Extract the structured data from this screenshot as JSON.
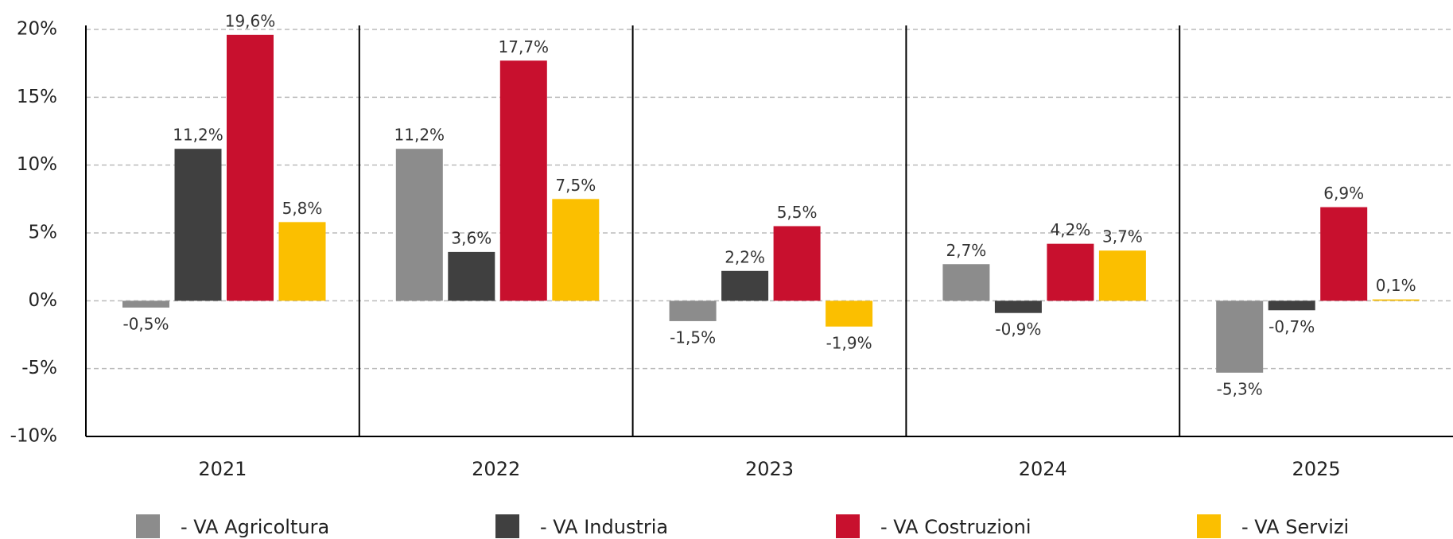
{
  "chart_data": {
    "type": "bar",
    "categories": [
      "2021",
      "2022",
      "2023",
      "2024",
      "2025"
    ],
    "series": [
      {
        "name": "- VA Agricoltura",
        "color": "#8c8c8c",
        "values": [
          -0.5,
          11.2,
          -1.5,
          2.7,
          -5.3
        ],
        "value_labels": [
          "-0,5%",
          "11,2%",
          "-1,5%",
          "2,7%",
          "-5,3%"
        ]
      },
      {
        "name": "- VA Industria",
        "color": "#404040",
        "values": [
          11.2,
          3.6,
          2.2,
          -0.9,
          -0.7
        ],
        "value_labels": [
          "11,2%",
          "3,6%",
          "2,2%",
          "-0,9%",
          "-0,7%"
        ]
      },
      {
        "name": "- VA Costruzioni",
        "color": "#c8102e",
        "values": [
          19.6,
          17.7,
          5.5,
          4.2,
          6.9
        ],
        "value_labels": [
          "19,6%",
          "17,7%",
          "5,5%",
          "4,2%",
          "6,9%"
        ]
      },
      {
        "name": "- VA Servizi",
        "color": "#fbbf00",
        "values": [
          5.8,
          7.5,
          -1.9,
          3.7,
          0.1
        ],
        "value_labels": [
          "5,8%",
          "7,5%",
          "-1,9%",
          "3,7%",
          "0,1%"
        ]
      }
    ],
    "ylim": [
      -10,
      20
    ],
    "yticks": [
      {
        "value": -10,
        "label": "-10%"
      },
      {
        "value": -5,
        "label": "-5%"
      },
      {
        "value": 0,
        "label": "0%"
      },
      {
        "value": 5,
        "label": "5%"
      },
      {
        "value": 10,
        "label": "10%"
      },
      {
        "value": 15,
        "label": "15%"
      },
      {
        "value": 20,
        "label": "20%"
      }
    ],
    "grid": true
  }
}
